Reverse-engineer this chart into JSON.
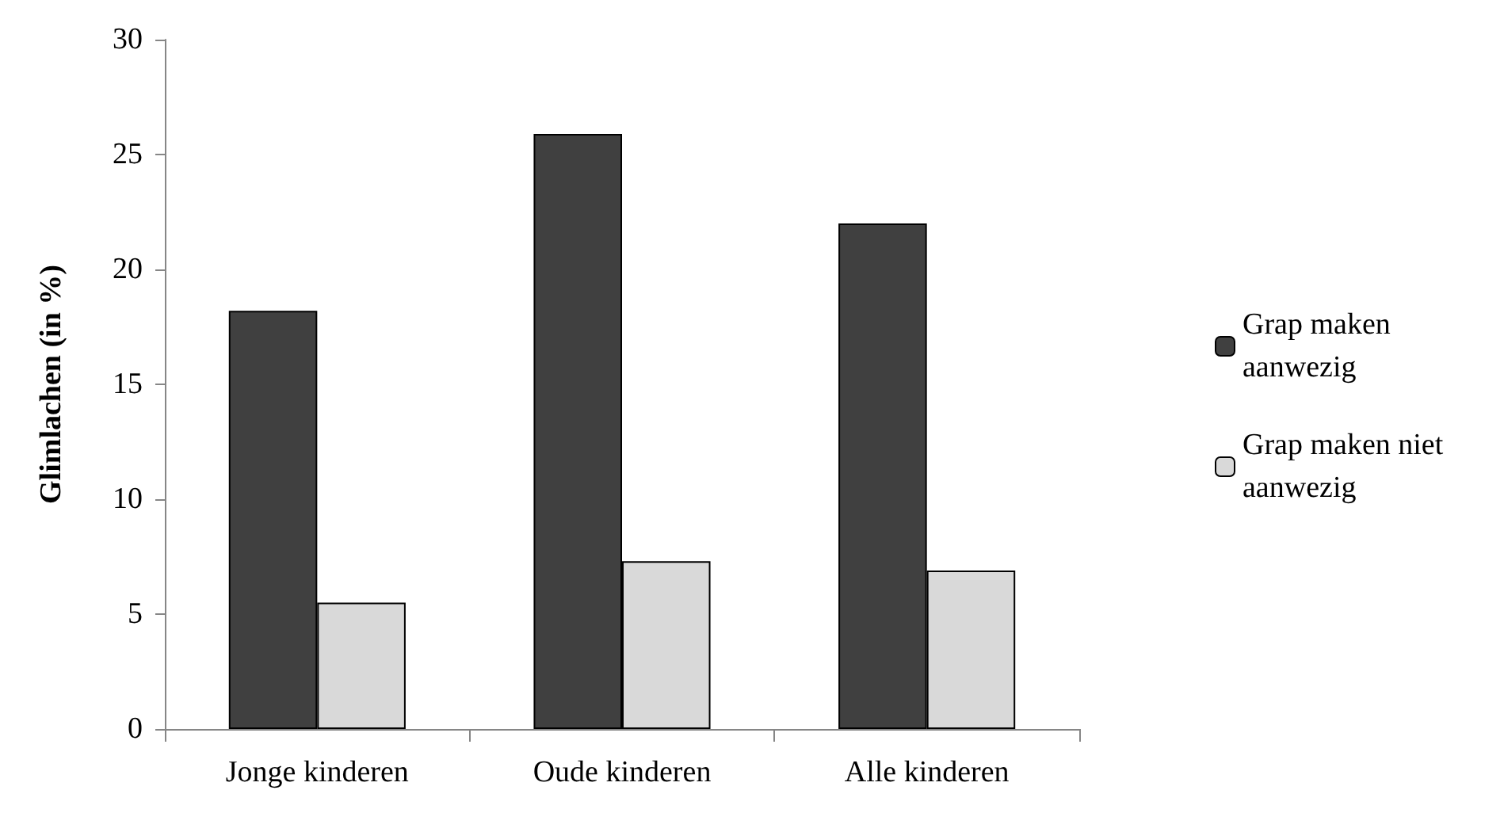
{
  "chart_data": {
    "type": "bar",
    "ylabel": "Glimlachen (in %)",
    "categories": [
      "Jonge kinderen",
      "Oude kinderen",
      "Alle kinderen"
    ],
    "series": [
      {
        "name": "Grap maken aanwezig",
        "color": "#404040",
        "values": [
          18.2,
          25.9,
          22.0
        ]
      },
      {
        "name": "Grap maken niet aanwezig",
        "color": "#d9d9d9",
        "values": [
          5.5,
          7.3,
          6.9
        ]
      }
    ],
    "ylim": [
      0,
      30
    ],
    "yticks": [
      0,
      5,
      10,
      15,
      20,
      25,
      30
    ],
    "grid": false,
    "legend": "right"
  }
}
